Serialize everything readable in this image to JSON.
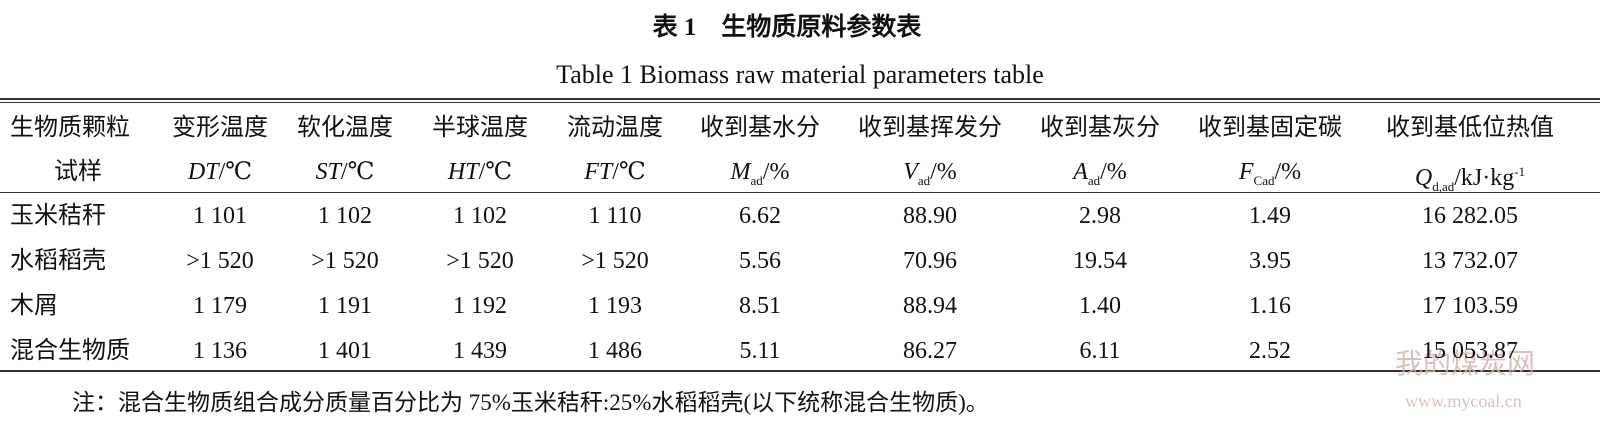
{
  "title": {
    "label": "表 1",
    "text": "生物质原料参数表",
    "en": "Table 1 Biomass raw material parameters table"
  },
  "table": {
    "header": [
      [
        "生物质颗粒",
        "变形温度",
        "软化温度",
        "半球温度",
        "流动温度",
        "收到基水分",
        "收到基挥发分",
        "收到基灰分",
        "收到基固定碳",
        "收到基低位热值"
      ],
      [
        {
          "text": "试样"
        },
        {
          "symbol": "DT",
          "unit": "/℃"
        },
        {
          "symbol": "ST",
          "unit": "/℃"
        },
        {
          "symbol": "HT",
          "unit": "/℃"
        },
        {
          "symbol": "FT",
          "unit": "/℃"
        },
        {
          "symbol": "M",
          "sub": "ad",
          "unit": "/%"
        },
        {
          "symbol": "V",
          "sub": "ad",
          "unit": "/%"
        },
        {
          "symbol": "A",
          "sub": "ad",
          "unit": "/%"
        },
        {
          "symbol": "F",
          "sub": "Cad",
          "unit": "/%"
        },
        {
          "symbol": "Q",
          "sub": "d,ad",
          "unit": "/kJ·kg",
          "sup": "-1"
        }
      ]
    ],
    "rows": [
      [
        "玉米秸秆",
        "1 101",
        "1 102",
        "1 102",
        "1 110",
        "6.62",
        "88.90",
        "2.98",
        "1.49",
        "16 282.05"
      ],
      [
        "水稻稻壳",
        ">1 520",
        ">1 520",
        ">1 520",
        ">1 520",
        "5.56",
        "70.96",
        "19.54",
        "3.95",
        "13 732.07"
      ],
      [
        "木屑",
        "1 179",
        "1 191",
        "1 192",
        "1 193",
        "8.51",
        "88.94",
        "1.40",
        "1.16",
        "17 103.59"
      ],
      [
        "混合生物质",
        "1 136",
        "1 401",
        "1 439",
        "1 486",
        "5.11",
        "86.27",
        "6.11",
        "2.52",
        "15 053.87"
      ]
    ]
  },
  "note": "注：混合生物质组合成分质量百分比为 75%玉米秸秆:25%水稻稻壳(以下统称混合生物质)。",
  "watermark": {
    "name": "我的煤炭网",
    "url": "www.mycoal.cn"
  }
}
